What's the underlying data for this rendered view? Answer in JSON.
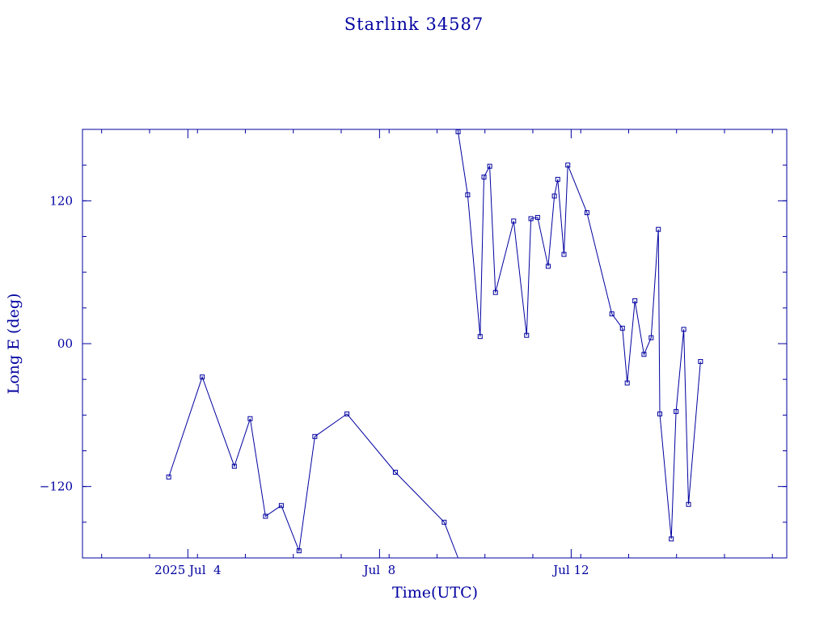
{
  "chart_data": {
    "type": "line",
    "title": "Starlink 34587",
    "xlabel": "Time(UTC)",
    "ylabel": "Long E (deg)",
    "color": "#0000a0",
    "x_unit": "days since 2025 Jul 1 00:00 UTC",
    "xlim": [
      0.8,
      15.5
    ],
    "ylim": [
      -180,
      180
    ],
    "x_ticks": [
      {
        "x": 3,
        "label": "2025 Jul  4"
      },
      {
        "x": 7,
        "label": "Jul  8"
      },
      {
        "x": 11,
        "label": "Jul 12"
      }
    ],
    "x_minor_ticks": [
      1.2,
      2.2,
      3.2,
      4.2,
      5.2,
      6.2,
      7.2,
      8.2,
      9.2,
      10.2,
      11.2,
      12.2,
      13.2,
      14.2,
      15.2
    ],
    "y_ticks": [
      {
        "y": -120,
        "label": "−120"
      },
      {
        "y": 0,
        "label": "00"
      },
      {
        "y": 120,
        "label": "120"
      }
    ],
    "y_minor_step": 30,
    "series": [
      {
        "name": "",
        "points": [
          [
            2.6,
            -112
          ],
          [
            3.3,
            -28
          ],
          [
            3.97,
            -103
          ],
          [
            4.3,
            -63
          ],
          [
            4.62,
            -145
          ],
          [
            4.95,
            -136
          ],
          [
            5.32,
            -174
          ],
          [
            5.65,
            -78
          ],
          [
            6.32,
            -59
          ],
          [
            7.33,
            -108
          ],
          [
            8.35,
            -150
          ],
          [
            8.64,
            -180
          ],
          [
            8.64,
            180
          ],
          [
            8.64,
            178
          ],
          [
            8.84,
            125
          ],
          [
            9.1,
            6
          ],
          [
            9.18,
            140
          ],
          [
            9.3,
            149
          ],
          [
            9.42,
            43
          ],
          [
            9.8,
            103
          ],
          [
            10.07,
            7
          ],
          [
            10.16,
            105
          ],
          [
            10.3,
            106
          ],
          [
            10.52,
            65
          ],
          [
            10.65,
            124
          ],
          [
            10.72,
            138
          ],
          [
            10.85,
            75
          ],
          [
            10.93,
            150
          ],
          [
            11.33,
            110
          ],
          [
            11.85,
            25
          ],
          [
            12.07,
            13
          ],
          [
            12.17,
            -33
          ],
          [
            12.33,
            36
          ],
          [
            12.52,
            -9
          ],
          [
            12.67,
            5
          ],
          [
            12.82,
            96
          ],
          [
            12.85,
            -59
          ],
          [
            13.09,
            -164
          ],
          [
            13.19,
            -57
          ],
          [
            13.35,
            12
          ],
          [
            13.45,
            -135
          ],
          [
            13.7,
            -15
          ]
        ],
        "breaks": [
          [
            11,
            12
          ]
        ]
      }
    ]
  }
}
